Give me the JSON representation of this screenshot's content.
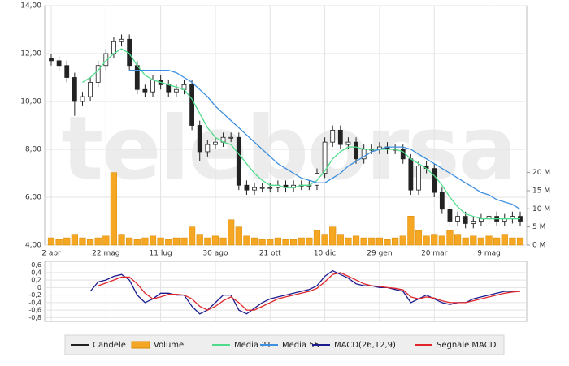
{
  "chart_data": [
    {
      "type": "candlestick",
      "watermark": "teleborsa",
      "candle_name": "Candele",
      "candle_color": "#222222",
      "categories": [
        "2 apr",
        null,
        null,
        null,
        null,
        null,
        null,
        "22 mag",
        null,
        null,
        null,
        null,
        null,
        null,
        "11 lug",
        null,
        null,
        null,
        null,
        null,
        null,
        "30 ago",
        null,
        null,
        null,
        null,
        null,
        null,
        "21 ott",
        null,
        null,
        null,
        null,
        null,
        null,
        "10 dic",
        null,
        null,
        null,
        null,
        null,
        null,
        "29 gen",
        null,
        null,
        null,
        null,
        null,
        null,
        "20 mar",
        null,
        null,
        null,
        null,
        null,
        null,
        "9 mag",
        null,
        null,
        null,
        null
      ],
      "open": [
        11.8,
        11.7,
        11.5,
        11.0,
        10.0,
        10.2,
        10.8,
        11.5,
        12.0,
        12.5,
        12.6,
        11.5,
        10.5,
        10.4,
        10.9,
        10.7,
        10.4,
        10.5,
        10.7,
        9.0,
        7.9,
        8.2,
        8.3,
        8.5,
        8.5,
        6.5,
        6.3,
        6.4,
        6.4,
        6.4,
        6.5,
        6.4,
        6.5,
        6.5,
        6.5,
        7.0,
        8.3,
        8.8,
        8.2,
        8.3,
        7.6,
        8.0,
        8.0,
        8.1,
        8.0,
        8.0,
        7.6,
        6.3,
        7.3,
        7.2,
        6.2,
        5.5,
        5.0,
        5.2,
        4.9,
        5.0,
        5.1,
        5.2,
        5.0,
        5.1,
        5.2
      ],
      "high": [
        12.0,
        11.9,
        11.7,
        11.2,
        10.4,
        11.0,
        11.7,
        12.2,
        12.7,
        12.8,
        12.8,
        11.7,
        10.7,
        11.1,
        11.1,
        10.9,
        10.7,
        10.9,
        10.9,
        9.2,
        8.4,
        8.5,
        8.7,
        8.7,
        8.7,
        6.7,
        6.6,
        6.6,
        6.6,
        6.7,
        6.7,
        6.7,
        6.7,
        6.7,
        7.2,
        8.5,
        9.0,
        9.0,
        8.5,
        8.5,
        8.2,
        8.2,
        8.3,
        8.3,
        8.2,
        8.2,
        7.8,
        7.5,
        7.5,
        7.4,
        6.4,
        5.7,
        5.4,
        5.4,
        5.2,
        5.3,
        5.4,
        5.4,
        5.3,
        5.4,
        5.4
      ],
      "low": [
        11.5,
        11.3,
        10.8,
        9.4,
        9.8,
        10.0,
        10.6,
        11.3,
        11.8,
        12.3,
        11.3,
        10.3,
        10.2,
        10.2,
        10.5,
        10.2,
        10.2,
        10.3,
        8.8,
        7.5,
        7.7,
        8.0,
        8.1,
        8.3,
        6.3,
        6.1,
        6.1,
        6.2,
        6.2,
        6.2,
        6.2,
        6.2,
        6.3,
        6.3,
        6.3,
        6.8,
        8.1,
        8.0,
        8.0,
        7.4,
        7.4,
        7.8,
        7.8,
        7.8,
        7.8,
        7.4,
        6.1,
        6.1,
        7.0,
        6.0,
        5.3,
        4.8,
        4.8,
        4.7,
        4.7,
        4.8,
        4.9,
        4.8,
        4.8,
        4.9,
        4.8
      ],
      "close": [
        11.7,
        11.5,
        11.0,
        10.0,
        10.2,
        10.8,
        11.5,
        12.0,
        12.5,
        12.6,
        11.5,
        10.5,
        10.4,
        10.9,
        10.7,
        10.4,
        10.5,
        10.7,
        9.0,
        7.9,
        8.2,
        8.3,
        8.5,
        8.5,
        6.5,
        6.3,
        6.4,
        6.4,
        6.4,
        6.5,
        6.4,
        6.5,
        6.5,
        6.5,
        7.0,
        8.3,
        8.8,
        8.2,
        8.3,
        7.6,
        8.0,
        8.0,
        8.1,
        8.0,
        8.0,
        7.6,
        6.3,
        7.3,
        7.2,
        6.2,
        5.5,
        5.0,
        5.2,
        4.9,
        5.0,
        5.1,
        5.2,
        5.0,
        5.1,
        5.2,
        5.0
      ],
      "series": [
        {
          "name": "Volume",
          "color": "#f5a623",
          "axis": "y2",
          "values": [
            2,
            1.5,
            2,
            3,
            2,
            1.5,
            2,
            2.5,
            20,
            3,
            2,
            1.5,
            2,
            2.5,
            2,
            1.5,
            2,
            2,
            5,
            3,
            2,
            2.5,
            2,
            7,
            5,
            2.5,
            2,
            1.5,
            1.5,
            2,
            1.5,
            1.5,
            2,
            2,
            4,
            3,
            5,
            3,
            2,
            2.5,
            2,
            2,
            2,
            1.5,
            2,
            2.5,
            8,
            4,
            2.5,
            3,
            2.5,
            4,
            3,
            2,
            2.5,
            2,
            2.5,
            2,
            3,
            2,
            2
          ]
        },
        {
          "name": "Media 21",
          "color": "#4fdc8a",
          "values": [
            null,
            null,
            null,
            null,
            10.8,
            11.0,
            11.3,
            11.7,
            12.0,
            12.2,
            12.0,
            11.5,
            11.1,
            10.9,
            10.8,
            10.7,
            10.6,
            10.5,
            10.1,
            9.5,
            8.9,
            8.5,
            8.3,
            8.2,
            7.8,
            7.4,
            7.0,
            6.7,
            6.5,
            6.5,
            6.4,
            6.4,
            6.5,
            6.5,
            6.7,
            7.1,
            7.6,
            7.9,
            8.1,
            8.1,
            8.0,
            8.0,
            8.0,
            8.0,
            8.0,
            7.9,
            7.6,
            7.4,
            7.2,
            6.9,
            6.5,
            6.0,
            5.6,
            5.3,
            5.2,
            5.1,
            5.1,
            5.1,
            5.1,
            5.1,
            5.1
          ]
        },
        {
          "name": "Media 55",
          "color": "#3d8fe0",
          "values": [
            null,
            null,
            null,
            null,
            null,
            null,
            null,
            null,
            null,
            null,
            11.3,
            11.3,
            11.3,
            11.3,
            11.3,
            11.3,
            11.2,
            11.0,
            10.8,
            10.5,
            10.2,
            9.8,
            9.5,
            9.2,
            8.9,
            8.6,
            8.3,
            8.0,
            7.7,
            7.4,
            7.2,
            7.0,
            6.8,
            6.7,
            6.6,
            6.6,
            6.8,
            7.0,
            7.3,
            7.5,
            7.7,
            7.9,
            8.0,
            8.1,
            8.1,
            8.1,
            8.0,
            7.8,
            7.6,
            7.4,
            7.2,
            7.0,
            6.8,
            6.6,
            6.4,
            6.2,
            6.1,
            5.9,
            5.8,
            5.7,
            5.5
          ]
        }
      ],
      "ylim": [
        4,
        14
      ],
      "yticks": [
        {
          "value": 4,
          "label": "4,00"
        },
        {
          "value": 6,
          "label": "6,00"
        },
        {
          "value": 8,
          "label": "8,00"
        },
        {
          "value": 10,
          "label": "10,00"
        },
        {
          "value": 12,
          "label": "12,00"
        },
        {
          "value": 14,
          "label": "14,00"
        }
      ],
      "y2lim": [
        0,
        66
      ],
      "y2ticks": [
        {
          "value": 0,
          "label": "0 M"
        },
        {
          "value": 5,
          "label": "5 M"
        },
        {
          "value": 10,
          "label": "10 M"
        },
        {
          "value": 15,
          "label": "15 M"
        },
        {
          "value": 20,
          "label": "20 M"
        }
      ],
      "grid": true
    },
    {
      "type": "line",
      "series": [
        {
          "name": "MACD(26,12,9)",
          "color": "#1c1c8f",
          "values": [
            null,
            null,
            null,
            null,
            null,
            -0.1,
            0.15,
            0.2,
            0.3,
            0.35,
            0.2,
            -0.2,
            -0.4,
            -0.3,
            -0.15,
            -0.15,
            -0.2,
            -0.2,
            -0.5,
            -0.7,
            -0.6,
            -0.4,
            -0.2,
            -0.2,
            -0.6,
            -0.7,
            -0.55,
            -0.4,
            -0.3,
            -0.25,
            -0.2,
            -0.15,
            -0.1,
            -0.05,
            0.05,
            0.3,
            0.45,
            0.35,
            0.25,
            0.1,
            0.05,
            0.05,
            0,
            0,
            -0.05,
            -0.1,
            -0.4,
            -0.3,
            -0.2,
            -0.3,
            -0.4,
            -0.45,
            -0.4,
            -0.4,
            -0.3,
            -0.25,
            -0.2,
            -0.15,
            -0.1,
            -0.1,
            -0.1
          ]
        },
        {
          "name": "Segnale MACD",
          "color": "#e0262a",
          "values": [
            null,
            null,
            null,
            null,
            null,
            null,
            0.05,
            0.12,
            0.2,
            0.28,
            0.28,
            0.1,
            -0.15,
            -0.3,
            -0.25,
            -0.18,
            -0.18,
            -0.2,
            -0.3,
            -0.5,
            -0.6,
            -0.5,
            -0.35,
            -0.25,
            -0.4,
            -0.6,
            -0.6,
            -0.5,
            -0.4,
            -0.3,
            -0.25,
            -0.2,
            -0.15,
            -0.1,
            -0.02,
            0.15,
            0.35,
            0.4,
            0.3,
            0.2,
            0.1,
            0.05,
            0.03,
            0,
            -0.02,
            -0.06,
            -0.25,
            -0.3,
            -0.25,
            -0.28,
            -0.35,
            -0.4,
            -0.4,
            -0.4,
            -0.35,
            -0.3,
            -0.25,
            -0.2,
            -0.15,
            -0.12,
            -0.1
          ]
        }
      ],
      "ylim": [
        -0.9,
        0.7
      ],
      "yticks": [
        {
          "value": 0.6,
          "label": "0,6"
        },
        {
          "value": 0.4,
          "label": "0,4"
        },
        {
          "value": 0.2,
          "label": "0,2"
        },
        0,
        {
          "value": -0.2,
          "label": "-0,2"
        },
        {
          "value": -0.4,
          "label": "-0,4"
        },
        {
          "value": -0.6,
          "label": "-0,6"
        },
        {
          "value": -0.8,
          "label": "-0,8"
        }
      ],
      "grid": true
    }
  ]
}
